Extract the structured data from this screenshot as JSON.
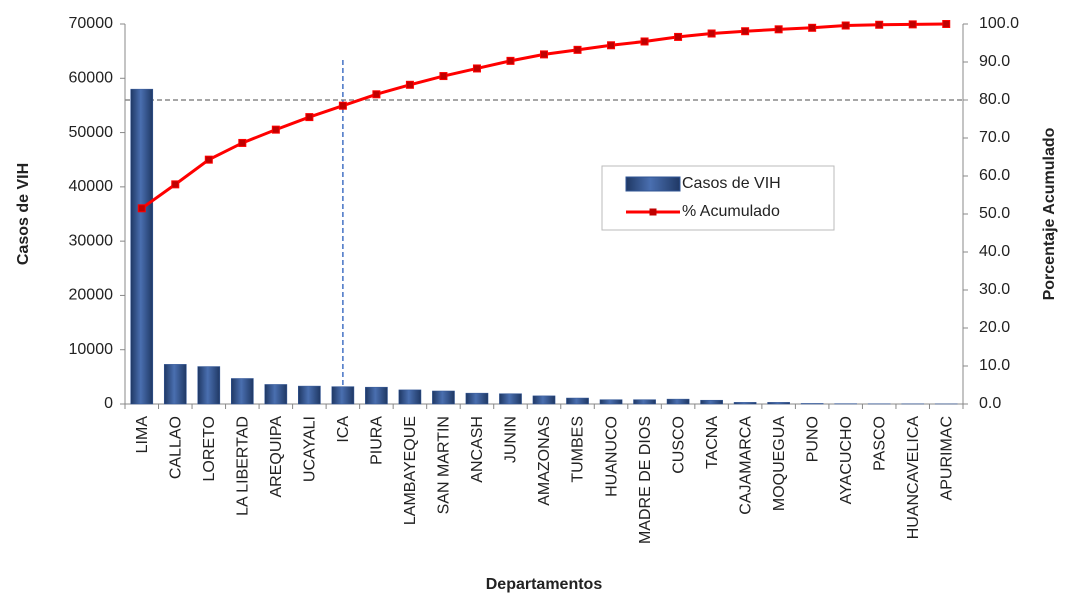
{
  "chart_data": {
    "type": "pareto",
    "x_label": "Departamentos",
    "y_label": "Casos de VIH",
    "y2_label": "Porcentaje Acumulado",
    "categories": [
      "LIMA",
      "CALLAO",
      "LORETO",
      "LA LIBERTAD",
      "AREQUIPA",
      "UCAYALI",
      "ICA",
      "PIURA",
      "LAMBAYEQUE",
      "SAN MARTIN",
      "ANCASH",
      "JUNIN",
      "AMAZONAS",
      "TUMBES",
      "HUANUCO",
      "MADRE DE DIOS",
      "CUSCO",
      "TACNA",
      "CAJAMARCA",
      "MOQUEGUA",
      "PUNO",
      "AYACUCHO",
      "PASCO",
      "HUANCAVELICA",
      "APURIMAC"
    ],
    "series": [
      {
        "name": "Casos de VIH",
        "type": "bar",
        "color": "#2f5496",
        "values": [
          58000,
          7300,
          6900,
          4700,
          3600,
          3300,
          3200,
          3100,
          2600,
          2400,
          2000,
          1900,
          1500,
          1100,
          800,
          800,
          900,
          700,
          300,
          300,
          100,
          60,
          40,
          30,
          20
        ]
      },
      {
        "name": "% Acumulado",
        "type": "line",
        "axis": "y2",
        "color": "#ff0000",
        "values": [
          51.5,
          57.8,
          64.3,
          68.7,
          72.2,
          75.5,
          78.5,
          81.5,
          84.0,
          86.3,
          88.3,
          90.3,
          92.0,
          93.2,
          94.4,
          95.4,
          96.6,
          97.5,
          98.1,
          98.6,
          99.0,
          99.6,
          99.8,
          99.9,
          100.0
        ]
      }
    ],
    "ylim": [
      0,
      70000
    ],
    "yticks": [
      0,
      10000,
      20000,
      30000,
      40000,
      50000,
      60000,
      70000
    ],
    "y2lim": [
      0,
      100
    ],
    "y2ticks": [
      {
        "value": 0,
        "label": "0.0"
      },
      {
        "value": 10,
        "label": "10.0"
      },
      {
        "value": 20,
        "label": "20.0"
      },
      {
        "value": 30,
        "label": "30.0"
      },
      {
        "value": 40,
        "label": "40.0"
      },
      {
        "value": 50,
        "label": "50.0"
      },
      {
        "value": 60,
        "label": "60.0"
      },
      {
        "value": 70,
        "label": "70.0"
      },
      {
        "value": 80,
        "label": "80.0"
      },
      {
        "value": 90,
        "label": "90.0"
      },
      {
        "value": 100,
        "label": "100.0"
      }
    ],
    "reference_line_y2": 80,
    "legend": "center-right"
  }
}
